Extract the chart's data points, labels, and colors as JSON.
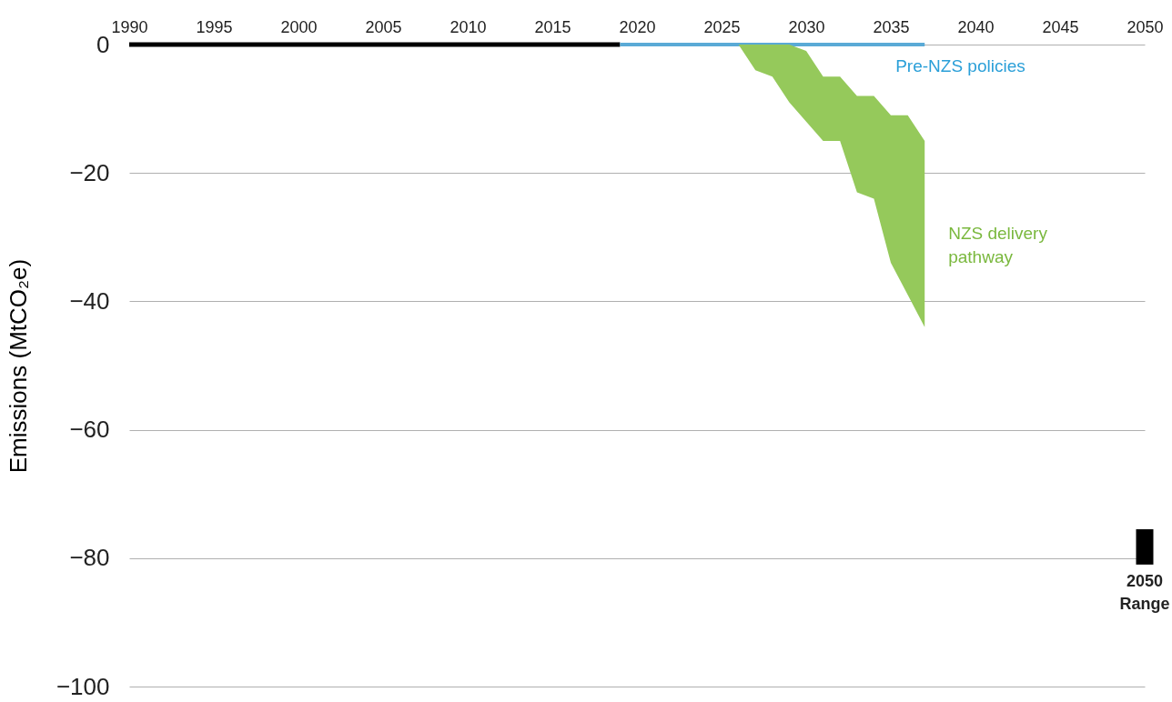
{
  "chart_data": {
    "type": "line",
    "ylabel": "Emissions (MtCO₂e)",
    "xlim": [
      1990,
      2050
    ],
    "xticks": [
      1990,
      1995,
      2000,
      2005,
      2010,
      2015,
      2020,
      2025,
      2030,
      2035,
      2040,
      2045,
      2050
    ],
    "ylim": [
      -100,
      0
    ],
    "yticks": [
      0,
      -20,
      -40,
      -60,
      -80,
      -100
    ],
    "grid": "y",
    "legend": false,
    "series": [
      {
        "color": "#000000",
        "x": [
          1990,
          2019
        ],
        "values": [
          0,
          0
        ]
      },
      {
        "name": "Pre-NZS policies",
        "color": "#5aaad6",
        "x": [
          2019,
          2037
        ],
        "values": [
          0,
          0
        ]
      },
      {
        "name": "NZS delivery pathway",
        "color": "#95c95b",
        "x": [
          2026,
          2027,
          2028,
          2029,
          2030,
          2031,
          2032,
          2033,
          2034,
          2035,
          2036,
          2037
        ],
        "values": [
          null,
          null,
          null,
          null,
          null,
          null,
          null,
          null,
          null,
          null,
          null,
          null
        ],
        "upper": [
          0,
          0,
          0,
          0,
          -1,
          -5,
          -5,
          -8,
          -8,
          -11,
          -11,
          -15
        ],
        "lower": [
          0,
          -4,
          -5,
          -9,
          -12,
          -15,
          -15,
          -23,
          -24,
          -34,
          -39,
          -44
        ]
      },
      {
        "type": "bar",
        "color": "#000000",
        "x": [
          2050
        ],
        "base": [
          -81
        ],
        "values": [
          5.5
        ]
      }
    ],
    "annotations": [
      "2050\nRange"
    ]
  }
}
